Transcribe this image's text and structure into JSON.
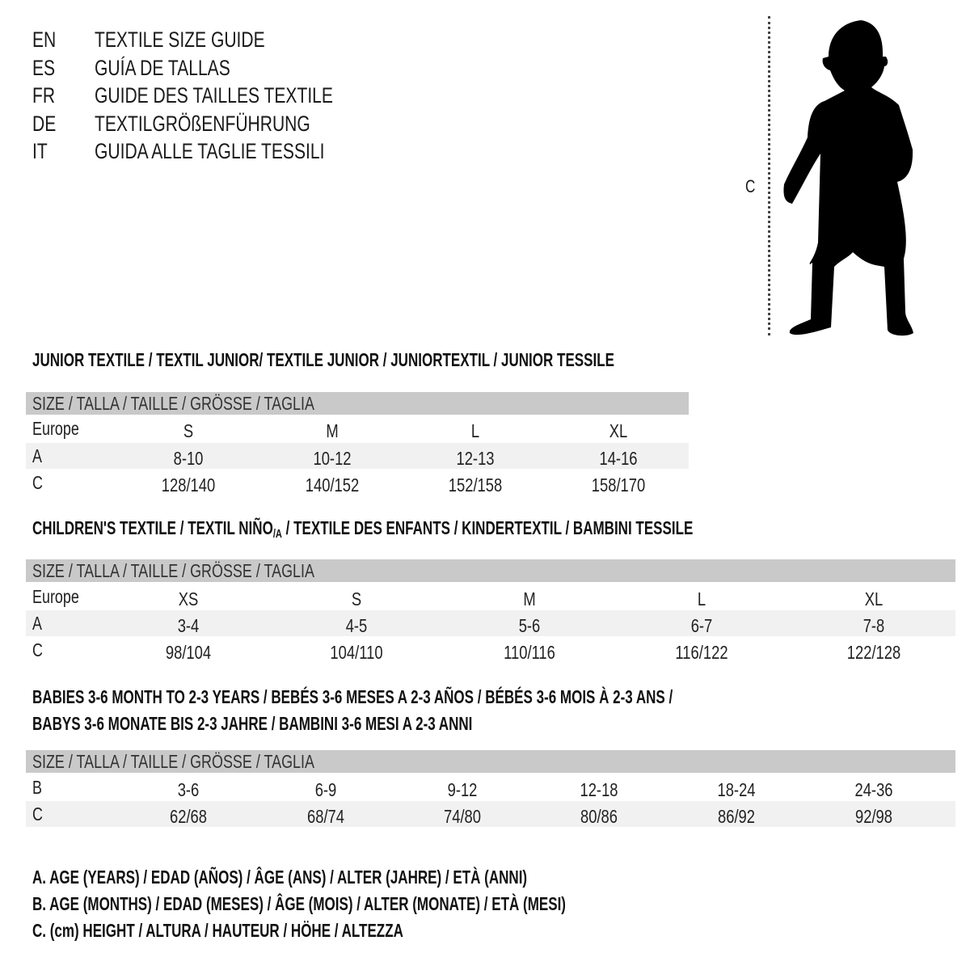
{
  "guide_titles": [
    {
      "code": "EN",
      "title": "TEXTILE SIZE GUIDE"
    },
    {
      "code": "ES",
      "title": "GUÍA DE TALLAS"
    },
    {
      "code": "FR",
      "title": "GUIDE DES TAILLES TEXTILE"
    },
    {
      "code": "DE",
      "title": "TEXTILGRÖßENFÜHRUNG"
    },
    {
      "code": "IT",
      "title": "GUIDA ALLE TAGLIE TESSILI"
    }
  ],
  "figure": {
    "icon": "child-silhouette-icon",
    "measure_label": "C"
  },
  "size_header": "SIZE / TALLA / TAILLE / GRÖSSE / TAGLIA",
  "junior": {
    "title": "JUNIOR TEXTILE / TEXTIL JUNIOR/ TEXTILE JUNIOR / JUNIORTEXTIL / JUNIOR TESSILE",
    "rows": [
      {
        "label": "Europe",
        "values": [
          "S",
          "M",
          "L",
          "XL"
        ]
      },
      {
        "label": "A",
        "values": [
          "8-10",
          "10-12",
          "12-13",
          "14-16"
        ]
      },
      {
        "label": "C",
        "values": [
          "128/140",
          "140/152",
          "152/158",
          "158/170"
        ]
      }
    ]
  },
  "children": {
    "title_pre": "CHILDREN'S TEXTILE / TEXTIL NIÑO",
    "title_sub": "/A",
    "title_post": " / TEXTILE DES ENFANTS / KINDERTEXTIL / BAMBINI TESSILE",
    "rows": [
      {
        "label": "Europe",
        "values": [
          "XS",
          "S",
          "M",
          "L",
          "XL"
        ]
      },
      {
        "label": "A",
        "values": [
          "3-4",
          "4-5",
          "5-6",
          "6-7",
          "7-8"
        ]
      },
      {
        "label": "C",
        "values": [
          "98/104",
          "104/110",
          "110/116",
          "116/122",
          "122/128"
        ]
      }
    ]
  },
  "babies": {
    "title_line1": "BABIES 3-6 MONTH TO 2-3 YEARS / BEBÉS 3-6 MESES A 2-3 AÑOS / BÉBÉS 3-6 MOIS À 2-3 ANS /",
    "title_line2": "BABYS 3-6 MONATE BIS 2-3 JAHRE / BAMBINI 3-6 MESI A 2-3 ANNI",
    "rows": [
      {
        "label": "B",
        "values": [
          "3-6",
          "6-9",
          "9-12",
          "12-18",
          "18-24",
          "24-36"
        ]
      },
      {
        "label": "C",
        "values": [
          "62/68",
          "68/74",
          "74/80",
          "80/86",
          "86/92",
          "92/98"
        ]
      }
    ]
  },
  "legend": [
    "A. AGE (YEARS) / EDAD (AÑOS) / ÂGE (ANS) / ALTER (JAHRE) / ETÀ (ANNI)",
    "B. AGE (MONTHS) / EDAD (MESES) / ÂGE (MOIS) / ALTER (MONATE) / ETÀ (MESI)",
    "C. (cm) HEIGHT / ALTURA / HAUTEUR / HÖHE / ALTEZZA"
  ],
  "colors": {
    "header_band": "#c9c9c9",
    "shaded_row": "#f1f1f1"
  }
}
